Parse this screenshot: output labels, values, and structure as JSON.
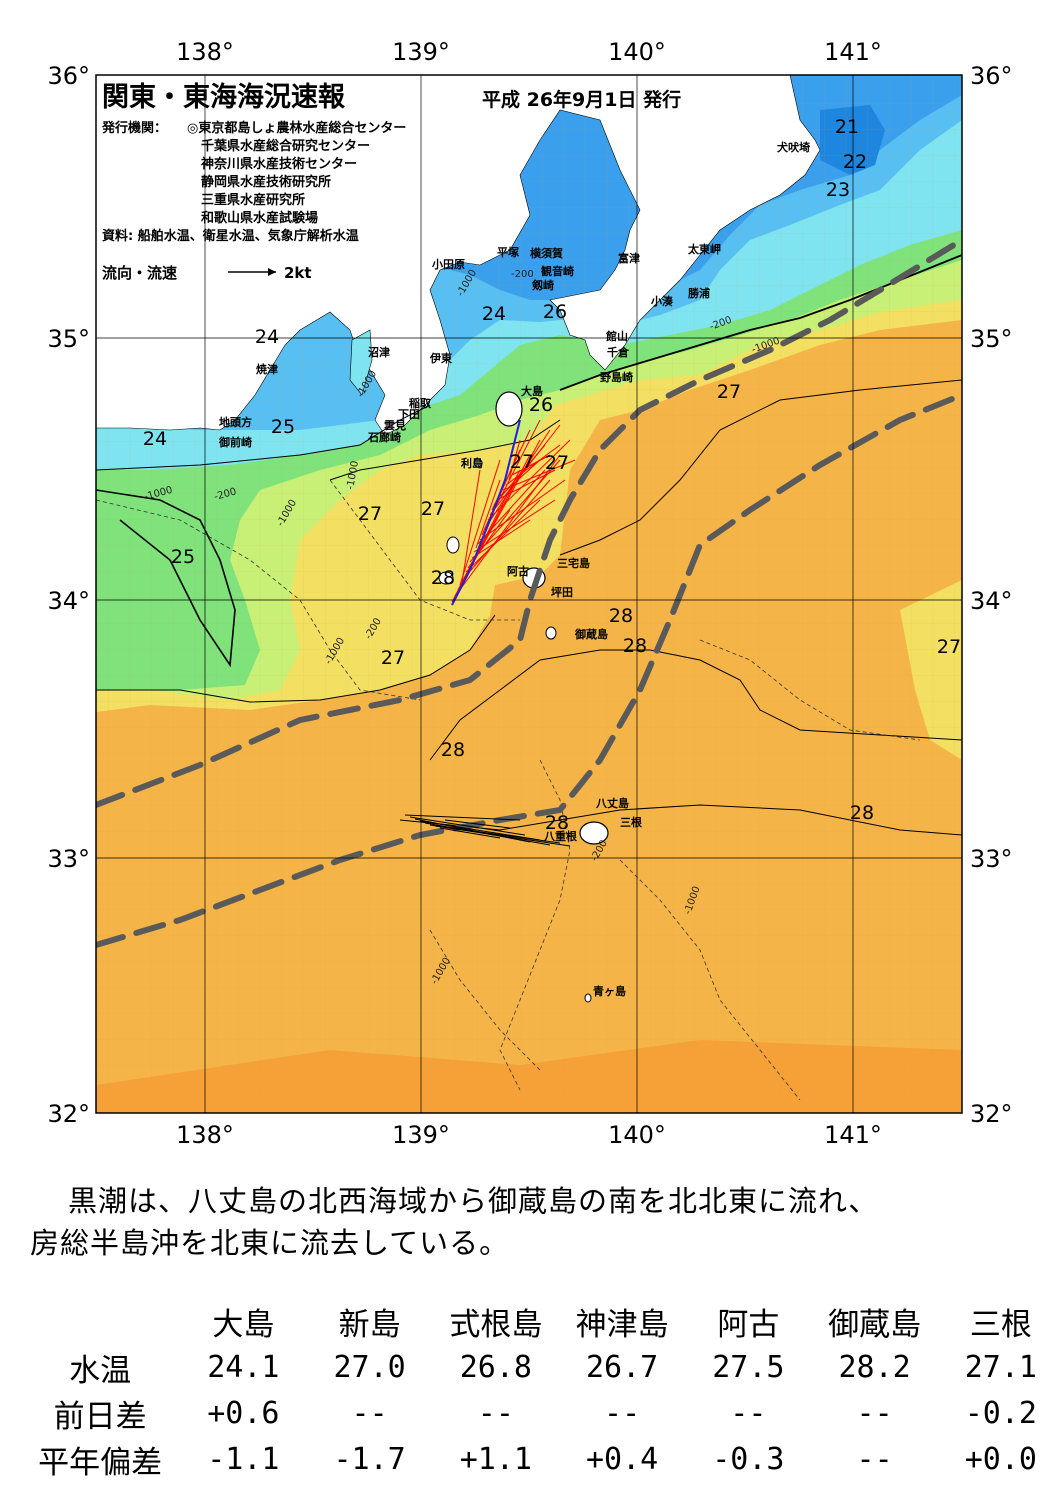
{
  "header": {
    "title": "関東・東海海況速報",
    "date": "平成 26年9月1日 発行",
    "issuers_label": "発行機関：",
    "issuers": [
      "◎東京都島しょ農林水産総合センター",
      "千葉県水産総合研究センター",
      "神奈川県水産技術センター",
      "静岡県水産技術研究所",
      "三重県水産研究所",
      "和歌山県水産試験場"
    ],
    "sources": "資料: 船舶水温、衛星水温、気象庁解析水温",
    "flow_legend": "流向・流速",
    "flow_scale": "2kt"
  },
  "axes": {
    "lon_labels": [
      "138°",
      "139°",
      "140°",
      "141°"
    ],
    "lat_labels": [
      "36°",
      "35°",
      "34°",
      "33°",
      "32°"
    ]
  },
  "colors": {
    "t20": "#1f86e0",
    "t21": "#1f86e0",
    "t22": "#3aa0ee",
    "t23": "#58bff2",
    "t24": "#7fe3f0",
    "t25": "#7fe27b",
    "t26": "#c8ef76",
    "t27": "#f3df61",
    "t28": "#f5b447",
    "t29": "#f5a137",
    "land": "#ffffff",
    "kuroshio": "#5a5a5a",
    "current_red": "#ff0000",
    "current_blue": "#2020e0"
  },
  "temperature_labels": [
    {
      "text": "21"
    },
    {
      "text": "22"
    },
    {
      "text": "23"
    },
    {
      "text": "24"
    },
    {
      "text": "24"
    },
    {
      "text": "24"
    },
    {
      "text": "25"
    },
    {
      "text": "25"
    },
    {
      "text": "26"
    },
    {
      "text": "26"
    },
    {
      "text": "27"
    },
    {
      "text": "27"
    },
    {
      "text": "27"
    },
    {
      "text": "27"
    },
    {
      "text": "27"
    },
    {
      "text": "27"
    },
    {
      "text": "27"
    },
    {
      "text": "28"
    },
    {
      "text": "28"
    },
    {
      "text": "28"
    },
    {
      "text": "28"
    },
    {
      "text": "28"
    },
    {
      "text": "28"
    }
  ],
  "depth_labels": [
    "-200",
    "-1000",
    "-200",
    "-1000",
    "-1000",
    "-1000",
    "-200",
    "-1000",
    "-1000",
    "-200",
    "-1000",
    "-1000",
    "-1000",
    "-200"
  ],
  "place_labels": [
    "犬吠埼",
    "太東岬",
    "勝浦",
    "小湊",
    "富津",
    "横須賀",
    "観音崎",
    "剱崎",
    "平塚",
    "小田原",
    "館山",
    "千倉",
    "野島崎",
    "沼津",
    "伊東",
    "焼津",
    "稲取",
    "下田",
    "雲見",
    "石廊崎",
    "地頭方",
    "御前崎",
    "大島",
    "利島",
    "三宅島",
    "阿古",
    "坪田",
    "御蔵島",
    "八丈島",
    "三根",
    "八重根",
    "青ヶ島"
  ],
  "summary": {
    "line1": "黒潮は、八丈島の北西海域から御蔵島の南を北北東に流れ、",
    "line2": "房総半島沖を北東に流去している。"
  },
  "table": {
    "stations": [
      "大島",
      "新島",
      "式根島",
      "神津島",
      "阿古",
      "御蔵島",
      "三根"
    ],
    "rows": [
      {
        "label": "水温",
        "values": [
          "24.1",
          "27.0",
          "26.8",
          "26.7",
          "27.5",
          "28.2",
          "27.1"
        ]
      },
      {
        "label": "前日差",
        "values": [
          "+0.6",
          "--",
          "--",
          "--",
          "--",
          "--",
          "-0.2"
        ]
      },
      {
        "label": "平年偏差",
        "values": [
          "-1.1",
          "-1.7",
          "+1.1",
          "+0.4",
          "-0.3",
          "--",
          "+0.0"
        ]
      }
    ]
  }
}
